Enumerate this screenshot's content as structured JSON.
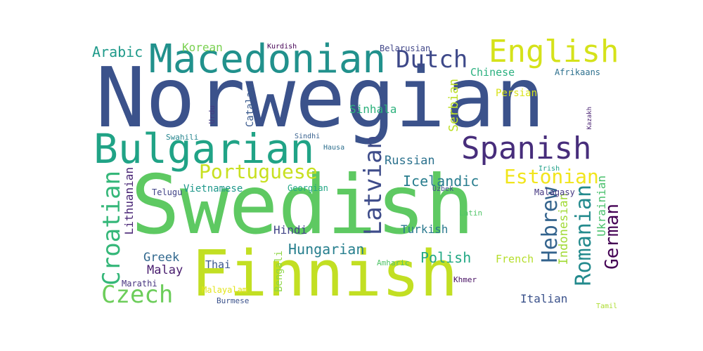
{
  "words": [
    {
      "text": "Norwegian",
      "color": "#3b528b",
      "vertical": false
    },
    {
      "text": "Swedish",
      "color": "#5ec962",
      "vertical": false
    },
    {
      "text": "Finnish",
      "color": "#c2df23",
      "vertical": false
    },
    {
      "text": "Macedonian",
      "color": "#21918c",
      "vertical": false
    },
    {
      "text": "Bulgarian",
      "color": "#20a386",
      "vertical": false
    },
    {
      "text": "English",
      "color": "#d5e21a",
      "vertical": false
    },
    {
      "text": "Spanish",
      "color": "#472d7b",
      "vertical": false
    },
    {
      "text": "Dutch",
      "color": "#3e4989",
      "vertical": false
    },
    {
      "text": "Portuguese",
      "color": "#c8e020",
      "vertical": false
    },
    {
      "text": "Estonian",
      "color": "#f1e51d",
      "vertical": false
    },
    {
      "text": "Latvian",
      "color": "#3e4c8a",
      "vertical": true
    },
    {
      "text": "Croatian",
      "color": "#35b779",
      "vertical": true
    },
    {
      "text": "Czech",
      "color": "#6ccd5a",
      "vertical": false
    },
    {
      "text": "Hebrew",
      "color": "#33638d",
      "vertical": true
    },
    {
      "text": "Romanian",
      "color": "#238a8d",
      "vertical": true
    },
    {
      "text": "German",
      "color": "#440154",
      "vertical": true
    },
    {
      "text": "Hungarian",
      "color": "#277f8e",
      "vertical": false
    },
    {
      "text": "Icelandic",
      "color": "#287d8e",
      "vertical": false
    },
    {
      "text": "Russian",
      "color": "#2c728e",
      "vertical": false
    },
    {
      "text": "Polish",
      "color": "#22a884",
      "vertical": false
    },
    {
      "text": "Arabic",
      "color": "#1f9a8a",
      "vertical": false
    },
    {
      "text": "Serbian",
      "color": "#bddf26",
      "vertical": true
    },
    {
      "text": "Indonesian",
      "color": "#a2da37",
      "vertical": true
    },
    {
      "text": "Ukrainian",
      "color": "#4ac16d",
      "vertical": true
    },
    {
      "text": "Lithuanian",
      "color": "#482475",
      "vertical": true
    },
    {
      "text": "Greek",
      "color": "#31688e",
      "vertical": false
    },
    {
      "text": "Malay",
      "color": "#481c6e",
      "vertical": false
    },
    {
      "text": "Italian",
      "color": "#3b528b",
      "vertical": false
    },
    {
      "text": "Hindi",
      "color": "#414487",
      "vertical": false
    },
    {
      "text": "Turkish",
      "color": "#2a788e",
      "vertical": false
    },
    {
      "text": "Sinhala",
      "color": "#2db27d",
      "vertical": false
    },
    {
      "text": "Chinese",
      "color": "#2ab07f",
      "vertical": false
    },
    {
      "text": "Korean",
      "color": "#7ad151",
      "vertical": false
    },
    {
      "text": "Thai",
      "color": "#39568c",
      "vertical": false
    },
    {
      "text": "French",
      "color": "#b5de2b",
      "vertical": false
    },
    {
      "text": "Persian",
      "color": "#d8e219",
      "vertical": false
    },
    {
      "text": "Vietnamese",
      "color": "#1f988b",
      "vertical": false
    },
    {
      "text": "Catalan",
      "color": "#38588c",
      "vertical": true
    },
    {
      "text": "Bengali",
      "color": "#8ed645",
      "vertical": true
    },
    {
      "text": "Belarusian",
      "color": "#404688",
      "vertical": false
    },
    {
      "text": "Afrikaans",
      "color": "#2d708e",
      "vertical": false
    },
    {
      "text": "Telugu",
      "color": "#404387",
      "vertical": false
    },
    {
      "text": "Georgian",
      "color": "#22a785",
      "vertical": false
    },
    {
      "text": "Urdu",
      "color": "#443a83",
      "vertical": true
    },
    {
      "text": "Swahili",
      "color": "#25858e",
      "vertical": false
    },
    {
      "text": "Malagasy",
      "color": "#453781",
      "vertical": false
    },
    {
      "text": "Marathi",
      "color": "#46337f",
      "vertical": false
    },
    {
      "text": "Malayalam",
      "color": "#e2e418",
      "vertical": false
    },
    {
      "text": "Burmese",
      "color": "#3b528b",
      "vertical": false
    },
    {
      "text": "Amharic",
      "color": "#52c569",
      "vertical": false
    },
    {
      "text": "Khmer",
      "color": "#471063",
      "vertical": false
    },
    {
      "text": "Latin",
      "color": "#52c569",
      "vertical": false
    },
    {
      "text": "Irish",
      "color": "#1fa088",
      "vertical": false
    },
    {
      "text": "Kurdish",
      "color": "#440154",
      "vertical": false
    },
    {
      "text": "Sindhi",
      "color": "#355f8d",
      "vertical": false
    },
    {
      "text": "Hausa",
      "color": "#2e6f8e",
      "vertical": false
    },
    {
      "text": "Uzbek",
      "color": "#3e4a89",
      "vertical": false
    },
    {
      "text": "Kazakh",
      "color": "#482071",
      "vertical": true
    },
    {
      "text": "Tamil",
      "color": "#addc30",
      "vertical": false
    }
  ]
}
